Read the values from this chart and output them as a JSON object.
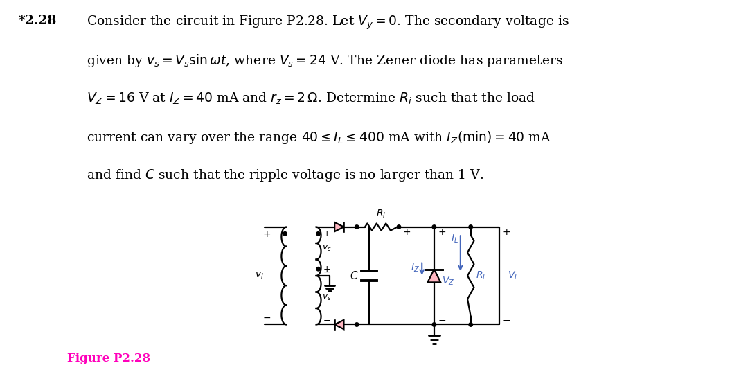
{
  "title_text": "*2.28",
  "body_lines": [
    "Consider the circuit in Figure P2.28. Let $V_y = 0$. The secondary voltage is",
    "given by $v_s = V_s\\sin\\omega t$, where $V_s = 24$ V. The Zener diode has parameters",
    "$V_Z = 16$ V at $I_Z = 40$ mA and $r_z = 2\\,\\Omega$. Determine $R_i$ such that the load",
    "current can vary over the range $40 \\leq I_L \\leq 400$ mA with $I_Z(\\mathrm{min}) = 40$ mA",
    "and find $C$ such that the ripple voltage is no larger than 1 V."
  ],
  "figure_label": "Figure P2.28",
  "figure_label_color": "#FF00BB",
  "text_color": "#000000",
  "diode_color": "#FFB6C1",
  "label_color": "#4466BB",
  "background_color": "#FFFFFF"
}
